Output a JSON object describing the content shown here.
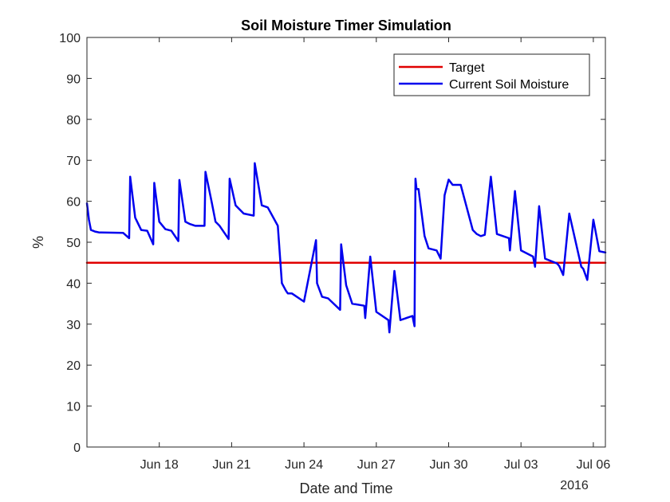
{
  "chart_data": {
    "type": "line",
    "title": "Soil Moisture Timer Simulation",
    "xlabel": "Date and Time",
    "ylabel": "%",
    "year_label": "2016",
    "x_range": [
      "2016-06-15",
      "2016-07-06 12:00"
    ],
    "ylim": [
      0,
      100
    ],
    "y_ticks": [
      0,
      10,
      20,
      30,
      40,
      50,
      60,
      70,
      80,
      90,
      100
    ],
    "x_ticks": [
      {
        "date": "2016-06-18",
        "label": "Jun 18"
      },
      {
        "date": "2016-06-21",
        "label": "Jun 21"
      },
      {
        "date": "2016-06-24",
        "label": "Jun 24"
      },
      {
        "date": "2016-06-27",
        "label": "Jun 27"
      },
      {
        "date": "2016-06-30",
        "label": "Jun 30"
      },
      {
        "date": "2016-07-03",
        "label": "Jul 03"
      },
      {
        "date": "2016-07-06",
        "label": "Jul 06"
      }
    ],
    "grid": false,
    "legend_position": "top-right",
    "series": [
      {
        "name": "Target",
        "color": "#e00000",
        "x": [
          "2016-06-15",
          "2016-07-06 12:00"
        ],
        "y": [
          45,
          45
        ]
      },
      {
        "name": "Current Soil Moisture",
        "color": "#0000ee",
        "x": [
          "2016-06-15 00:00",
          "2016-06-15 02:00",
          "2016-06-15 04:00",
          "2016-06-15 06:00",
          "2016-06-15 08:00",
          "2016-06-15 10:00",
          "2016-06-15 12:00",
          "2016-06-16 12:00",
          "2016-06-16 18:00",
          "2016-06-16 19:00",
          "2016-06-17 00:00",
          "2016-06-17 06:00",
          "2016-06-17 12:00",
          "2016-06-17 18:00",
          "2016-06-17 19:00",
          "2016-06-18 00:00",
          "2016-06-18 06:00",
          "2016-06-18 12:00",
          "2016-06-18 19:00",
          "2016-06-18 20:00",
          "2016-06-19 02:00",
          "2016-06-19 06:00",
          "2016-06-19 12:00",
          "2016-06-19 21:00",
          "2016-06-19 22:00",
          "2016-06-20 04:00",
          "2016-06-20 08:00",
          "2016-06-20 12:00",
          "2016-06-20 21:00",
          "2016-06-20 22:00",
          "2016-06-21 04:00",
          "2016-06-21 12:00",
          "2016-06-21 22:00",
          "2016-06-21 23:00",
          "2016-06-22 02:00",
          "2016-06-22 06:00",
          "2016-06-22 12:00",
          "2016-06-22 22:00",
          "2016-06-23 02:00",
          "2016-06-23 06:00",
          "2016-06-23 08:00",
          "2016-06-23 12:00",
          "2016-06-24 00:00",
          "2016-06-24 12:00",
          "2016-06-24 13:00",
          "2016-06-24 18:00",
          "2016-06-25 00:00",
          "2016-06-25 12:00",
          "2016-06-25 13:00",
          "2016-06-25 18:00",
          "2016-06-26 00:00",
          "2016-06-26 12:00",
          "2016-06-26 13:00",
          "2016-06-26 18:00",
          "2016-06-27 00:00",
          "2016-06-27 12:00",
          "2016-06-27 13:00",
          "2016-06-27 18:00",
          "2016-06-28 00:00",
          "2016-06-28 12:00",
          "2016-06-28 14:00",
          "2016-06-28 15:00",
          "2016-06-28 16:00",
          "2016-06-28 18:00",
          "2016-06-29 00:00",
          "2016-06-29 04:00",
          "2016-06-29 12:00",
          "2016-06-29 16:00",
          "2016-06-29 20:00",
          "2016-06-30 00:00",
          "2016-06-30 04:00",
          "2016-06-30 12:00",
          "2016-07-01 00:00",
          "2016-07-01 04:00",
          "2016-07-01 08:00",
          "2016-07-01 12:00",
          "2016-07-01 18:00",
          "2016-07-02 00:00",
          "2016-07-02 12:00",
          "2016-07-02 13:00",
          "2016-07-02 18:00",
          "2016-07-03 00:00",
          "2016-07-03 12:00",
          "2016-07-03 14:00",
          "2016-07-03 18:00",
          "2016-07-04 00:00",
          "2016-07-04 12:00",
          "2016-07-04 14:00",
          "2016-07-04 18:00",
          "2016-07-05 00:00",
          "2016-07-05 12:00",
          "2016-07-05 14:00",
          "2016-07-05 18:00",
          "2016-07-06 00:00",
          "2016-07-06 06:00",
          "2016-07-06 12:00"
        ],
        "y": [
          59.5,
          55.5,
          53,
          52.8,
          52.6,
          52.5,
          52.4,
          52.3,
          51.0,
          66.0,
          56.0,
          53.0,
          52.8,
          49.5,
          64.5,
          55.0,
          53.2,
          52.8,
          50.3,
          65.2,
          55.0,
          54.5,
          54.0,
          54.0,
          67.2,
          60.0,
          55.0,
          54.0,
          50.8,
          65.5,
          59.0,
          57.0,
          56.5,
          69.3,
          65.0,
          59.0,
          58.5,
          54.0,
          40.0,
          38.2,
          37.5,
          37.5,
          35.5,
          50.5,
          40.0,
          36.7,
          36.3,
          33.5,
          49.5,
          39.5,
          35.0,
          34.5,
          31.5,
          46.5,
          33.0,
          31.0,
          28.0,
          43.0,
          31.0,
          32.0,
          29.5,
          65.5,
          63.0,
          63.0,
          51.5,
          48.5,
          48.0,
          46.0,
          61.5,
          65.3,
          64.0,
          64.0,
          53.0,
          52.0,
          51.5,
          51.8,
          66.0,
          52.0,
          51.0,
          48.0,
          62.5,
          48.0,
          46.5,
          44.0,
          58.8,
          46.0,
          44.8,
          44.2,
          42.0,
          57.0,
          44.0,
          43.5,
          40.8,
          55.5,
          47.8,
          47.5
        ]
      }
    ]
  }
}
